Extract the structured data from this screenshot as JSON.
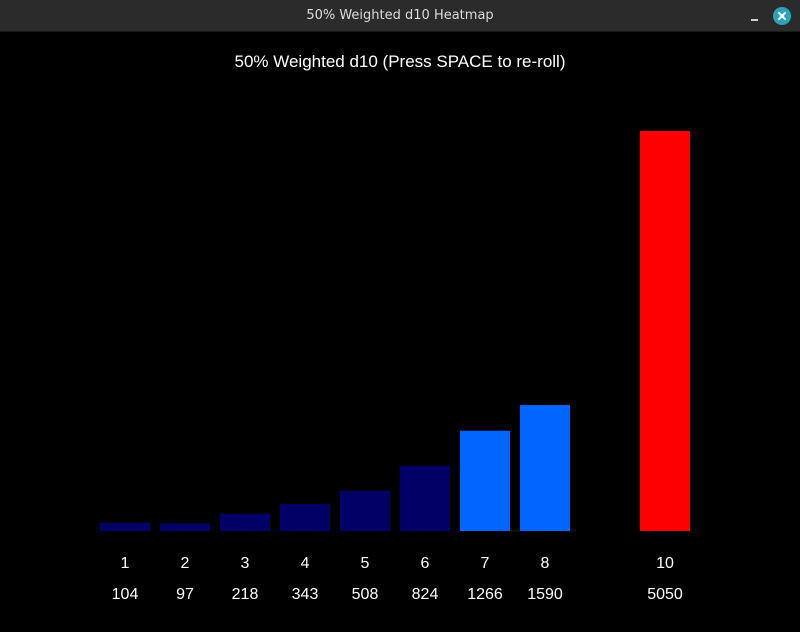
{
  "window": {
    "title": "50% Weighted d10 Heatmap",
    "close_color": "#2aa3b8"
  },
  "heading": "50% Weighted d10 (Press SPACE to re-roll)",
  "chart_data": {
    "type": "bar",
    "categories": [
      "1",
      "2",
      "3",
      "4",
      "5",
      "6",
      "7",
      "8",
      "10"
    ],
    "values": [
      104,
      97,
      218,
      343,
      508,
      824,
      1266,
      1590,
      5050
    ],
    "title": "50% Weighted d10 (Press SPACE to re-roll)",
    "xlabel": "",
    "ylabel": "",
    "grid": false,
    "legend": "none",
    "colors": [
      "#000066",
      "#000066",
      "#000066",
      "#000066",
      "#000066",
      "#000066",
      "#0066ff",
      "#0066ff",
      "#ff0000"
    ]
  }
}
